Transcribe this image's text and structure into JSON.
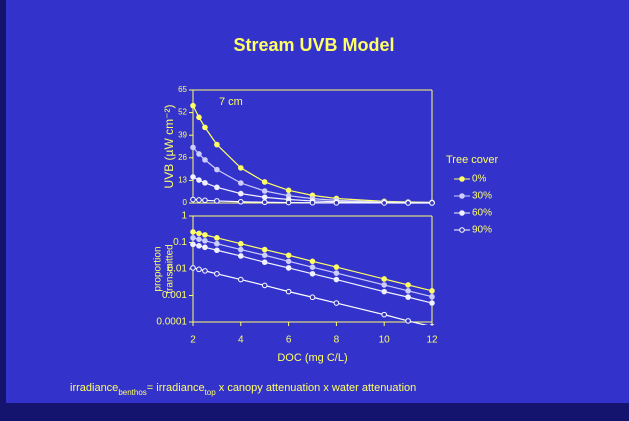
{
  "title": "Stream UVB Model",
  "caption": [
    {
      "text": "irradiance",
      "sub": false
    },
    {
      "text": "benthos",
      "sub": true
    },
    {
      "text": "= irradiance",
      "sub": false
    },
    {
      "text": "top",
      "sub": true
    },
    {
      "text": " x canopy attenuation x water attenuation",
      "sub": false
    }
  ],
  "chart_data": [
    {
      "type": "line",
      "ylabel": "UVB (µW cm⁻²)",
      "annotation": "7 cm",
      "legend_title": "Tree cover",
      "legend": "right",
      "x": [
        2,
        2.25,
        2.5,
        3,
        4,
        5,
        6,
        7,
        8,
        10,
        11,
        12
      ],
      "xlim": [
        2,
        12
      ],
      "ylim": [
        0,
        65
      ],
      "yticks": [
        0,
        13,
        26,
        39,
        52,
        65
      ],
      "log_y": false,
      "series": [
        {
          "name": "0%",
          "color": "#ffff66",
          "filled": true,
          "values": [
            56,
            49.3,
            43.5,
            33.6,
            20.2,
            12.1,
            7.3,
            4.4,
            2.6,
            0.95,
            0.57,
            0.34
          ]
        },
        {
          "name": "30%",
          "color": "#ccccff",
          "filled": true,
          "values": [
            32,
            28.2,
            24.8,
            19.2,
            11.5,
            6.9,
            4.2,
            2.5,
            1.5,
            0.54,
            0.33,
            0.2
          ]
        },
        {
          "name": "60%",
          "color": "#f0f0ff",
          "filled": true,
          "values": [
            15,
            13.2,
            11.6,
            9,
            5.4,
            3.3,
            2,
            1.2,
            0.7,
            0.25,
            0.15,
            0.09
          ]
        },
        {
          "name": "90%",
          "color": "#ffffff",
          "filled": false,
          "values": [
            2,
            1.76,
            1.55,
            1.2,
            0.72,
            0.43,
            0.26,
            0.16,
            0.09,
            0.03,
            0.02,
            0.01
          ]
        }
      ]
    },
    {
      "type": "line",
      "ylabel": [
        "proportion",
        "transmitted"
      ],
      "xlabel": "DOC (mg C/L)",
      "x": [
        2,
        2.25,
        2.5,
        3,
        4,
        5,
        6,
        7,
        8,
        10,
        11,
        12
      ],
      "xlim": [
        2,
        12
      ],
      "xticks": [
        2,
        4,
        6,
        8,
        10,
        12
      ],
      "ylim": [
        0.0001,
        1
      ],
      "yticks": [
        1,
        0.1,
        0.01,
        0.001,
        0.0001
      ],
      "log_y": true,
      "series": [
        {
          "color": "#ffff66",
          "filled": true,
          "values": [
            0.25,
            0.22,
            0.194,
            0.15,
            0.09,
            0.054,
            0.033,
            0.0195,
            0.0118,
            0.0042,
            0.0025,
            0.0015
          ]
        },
        {
          "color": "#ccccff",
          "filled": true,
          "values": [
            0.15,
            0.132,
            0.116,
            0.09,
            0.054,
            0.033,
            0.0195,
            0.0117,
            0.007,
            0.0025,
            0.0015,
            0.0009
          ]
        },
        {
          "color": "#f0f0ff",
          "filled": true,
          "values": [
            0.085,
            0.075,
            0.066,
            0.051,
            0.031,
            0.018,
            0.011,
            0.0066,
            0.004,
            0.0014,
            0.00087,
            0.00052
          ]
        },
        {
          "color": "#ffffff",
          "filled": false,
          "values": [
            0.011,
            0.0097,
            0.0085,
            0.0066,
            0.004,
            0.0024,
            0.0014,
            0.00086,
            0.00052,
            0.00019,
            0.00011,
            6.7e-05
          ]
        }
      ]
    }
  ]
}
